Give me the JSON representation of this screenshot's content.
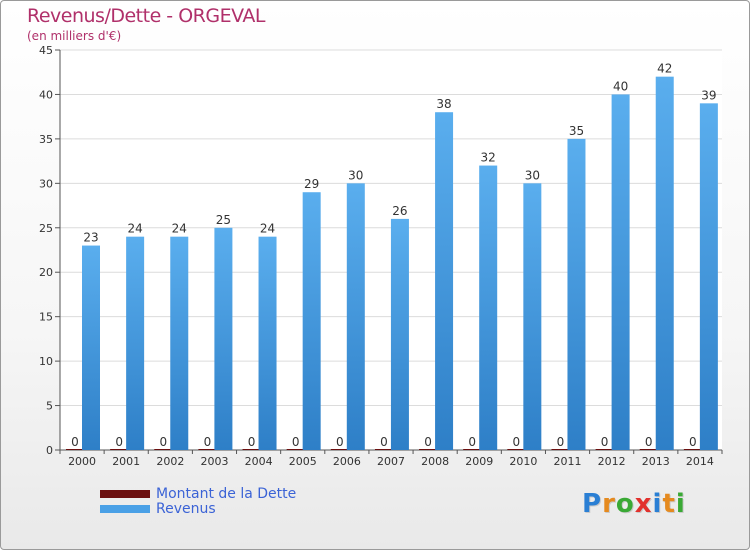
{
  "chart_data": {
    "type": "bar",
    "title": "Revenus/Dette - ORGEVAL",
    "subtitle": "(en milliers d'€)",
    "categories": [
      "2000",
      "2001",
      "2002",
      "2003",
      "2004",
      "2005",
      "2006",
      "2007",
      "2008",
      "2009",
      "2010",
      "2011",
      "2012",
      "2013",
      "2014"
    ],
    "series": [
      {
        "name": "Montant de la Dette",
        "color": "#6b0f0f",
        "values": [
          0,
          0,
          0,
          0,
          0,
          0,
          0,
          0,
          0,
          0,
          0,
          0,
          0,
          0,
          0
        ]
      },
      {
        "name": "Revenus",
        "color": "#4aa0e6",
        "values": [
          23,
          24,
          24,
          25,
          24,
          29,
          30,
          26,
          38,
          32,
          30,
          35,
          40,
          42,
          39
        ]
      }
    ],
    "ylim": [
      0,
      45
    ],
    "yticks": [
      0,
      5,
      10,
      15,
      20,
      25,
      30,
      35,
      40,
      45
    ],
    "grid": true,
    "legend_position": "bottom-left"
  },
  "logo": {
    "letters": [
      "P",
      "r",
      "o",
      "x",
      "i",
      "t",
      "i"
    ],
    "colors": [
      "#2a7fd4",
      "#e58a1f",
      "#3aa935",
      "#e2312d",
      "#2a7fd4",
      "#e58a1f",
      "#3aa935"
    ]
  }
}
